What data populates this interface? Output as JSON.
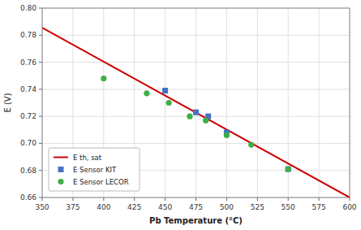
{
  "chart_data": {
    "type": "scatter",
    "xlabel": "Pb Temperature (°C)",
    "ylabel": "E (V)",
    "xlim": [
      350,
      600
    ],
    "ylim": [
      0.66,
      0.8
    ],
    "xticks": [
      350,
      375,
      400,
      425,
      450,
      475,
      500,
      525,
      550,
      575,
      600
    ],
    "yticks": [
      0.66,
      0.68,
      {
        "value": 0.7,
        "label": "0.70"
      },
      0.72,
      0.74,
      0.76,
      0.78,
      {
        "value": 0.8,
        "label": "0.80"
      }
    ],
    "grid": true,
    "legend": "lower left",
    "series": [
      {
        "name": "E th, sat",
        "type": "line",
        "color": "#cc0000",
        "x": [
          350,
          600
        ],
        "values": [
          0.7855,
          0.66
        ]
      },
      {
        "name": "E Sensor KIT",
        "type": "scatter",
        "marker": "square",
        "color": "#4472c4",
        "x": [
          450,
          475,
          485,
          500,
          550
        ],
        "values": [
          0.739,
          0.723,
          0.72,
          0.708,
          0.681
        ]
      },
      {
        "name": "E Sensor LECOR",
        "type": "scatter",
        "marker": "circle",
        "color": "#3cb043",
        "x": [
          400,
          435,
          453,
          470,
          483,
          500,
          520,
          550
        ],
        "values": [
          0.748,
          0.737,
          0.73,
          0.72,
          0.717,
          0.706,
          0.699,
          0.681
        ]
      }
    ]
  }
}
